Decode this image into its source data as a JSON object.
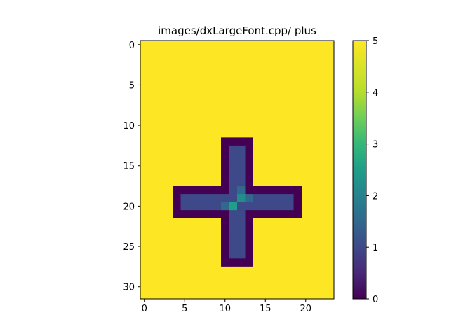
{
  "chart_data": {
    "type": "heatmap",
    "title": "images/dxLargeFont.cpp/ plus",
    "rows": 32,
    "cols": 24,
    "xticks": [
      0,
      5,
      10,
      15,
      20
    ],
    "yticks": [
      0,
      5,
      10,
      15,
      20,
      25,
      30
    ],
    "xlim": [
      -0.5,
      23.5
    ],
    "ylim": [
      31.5,
      -0.5
    ],
    "background_value": 5,
    "regions": [
      {
        "label": "vertical-bar-border",
        "rows": [
          12,
          27
        ],
        "cols": [
          10,
          13
        ],
        "value": 0
      },
      {
        "label": "horizontal-bar-border",
        "rows": [
          18,
          21
        ],
        "cols": [
          4,
          19
        ],
        "value": 0
      },
      {
        "label": "vertical-bar-fill",
        "rows": [
          13,
          26
        ],
        "cols": [
          11,
          12
        ],
        "value": 1
      },
      {
        "label": "horizontal-bar-fill",
        "rows": [
          19,
          20
        ],
        "cols": [
          5,
          18
        ],
        "value": 1
      },
      {
        "label": "center-accent",
        "cells": [
          [
            18,
            12,
            1.5
          ],
          [
            19,
            12,
            2.2
          ],
          [
            20,
            11,
            2.5
          ],
          [
            20,
            10,
            1.5
          ],
          [
            19,
            13,
            1.5
          ]
        ]
      }
    ],
    "colorbar": {
      "min": 0,
      "max": 5,
      "ticks": [
        0,
        1,
        2,
        3,
        4,
        5
      ],
      "colormap": "viridis"
    }
  }
}
